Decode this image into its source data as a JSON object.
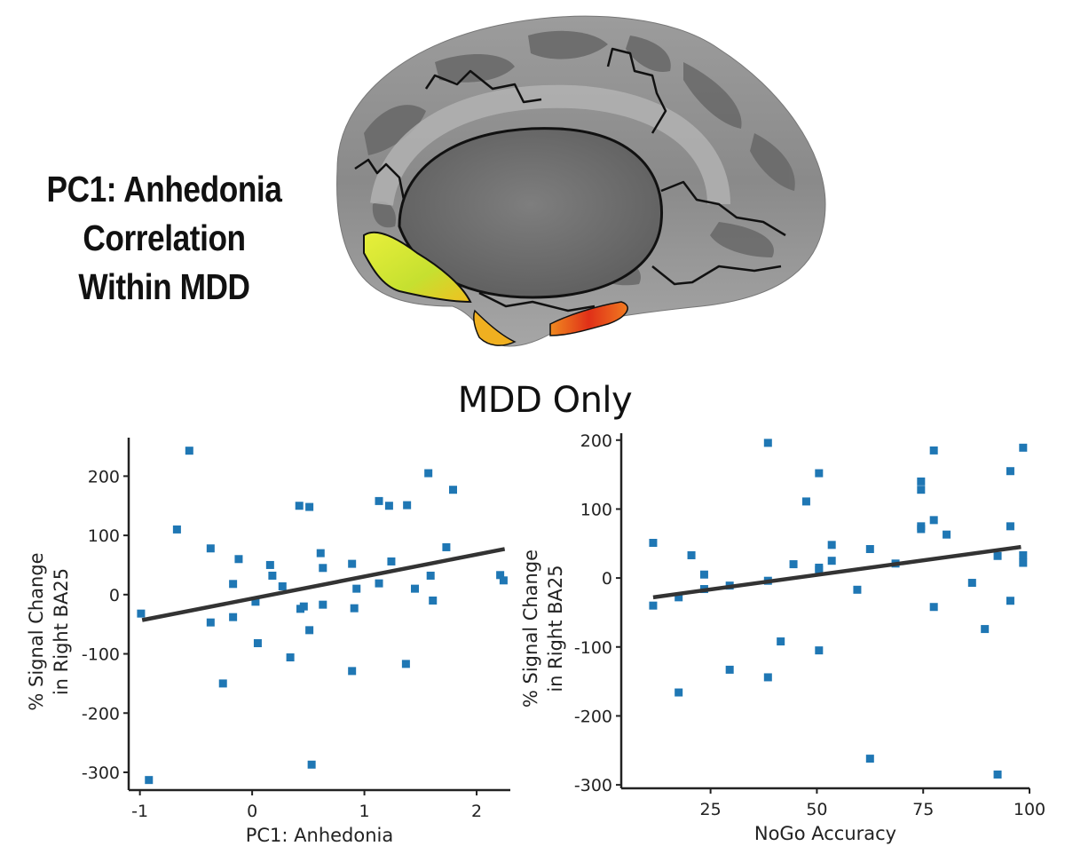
{
  "brain_panel": {
    "title_lines": [
      "PC1: Anhedonia",
      "Correlation",
      "Within MDD"
    ],
    "image_description": "inflated medial brain surface"
  },
  "section_title": "MDD Only",
  "colors": {
    "point": "#1f77b4",
    "fit_line": "#333333",
    "axis": "#222222"
  },
  "chart_data": [
    {
      "type": "scatter",
      "title": "",
      "xlabel": "PC1: Anhedonia",
      "ylabel_lines": [
        "% Signal Change",
        "in Right BA25"
      ],
      "xlim": [
        -1.1,
        2.3
      ],
      "ylim": [
        -330,
        265
      ],
      "xticks": [
        -1,
        0,
        1,
        2
      ],
      "xtick_labels": [
        "-1",
        "0",
        "1",
        "2"
      ],
      "yticks": [
        200,
        100,
        0,
        -100,
        -200,
        -300
      ],
      "ytick_labels": [
        "200",
        "100",
        "0",
        "-100",
        "-200",
        "-300"
      ],
      "points": [
        {
          "x": -0.99,
          "y": -32
        },
        {
          "x": -0.92,
          "y": -313
        },
        {
          "x": -0.67,
          "y": 110
        },
        {
          "x": -0.56,
          "y": 243
        },
        {
          "x": -0.37,
          "y": 78
        },
        {
          "x": -0.37,
          "y": -47
        },
        {
          "x": -0.26,
          "y": -150
        },
        {
          "x": -0.17,
          "y": 18
        },
        {
          "x": -0.17,
          "y": -38
        },
        {
          "x": -0.12,
          "y": 60
        },
        {
          "x": 0.03,
          "y": -12
        },
        {
          "x": 0.05,
          "y": -82
        },
        {
          "x": 0.16,
          "y": 50
        },
        {
          "x": 0.18,
          "y": 32
        },
        {
          "x": 0.27,
          "y": 14
        },
        {
          "x": 0.34,
          "y": -106
        },
        {
          "x": 0.42,
          "y": 150
        },
        {
          "x": 0.43,
          "y": -24
        },
        {
          "x": 0.46,
          "y": -20
        },
        {
          "x": 0.51,
          "y": 148
        },
        {
          "x": 0.51,
          "y": -60
        },
        {
          "x": 0.53,
          "y": -287
        },
        {
          "x": 0.61,
          "y": 70
        },
        {
          "x": 0.63,
          "y": 45
        },
        {
          "x": 0.63,
          "y": -17
        },
        {
          "x": 0.89,
          "y": 52
        },
        {
          "x": 0.89,
          "y": -129
        },
        {
          "x": 0.91,
          "y": -23
        },
        {
          "x": 0.93,
          "y": 10
        },
        {
          "x": 1.13,
          "y": 158
        },
        {
          "x": 1.13,
          "y": 19
        },
        {
          "x": 1.22,
          "y": 150
        },
        {
          "x": 1.24,
          "y": 56
        },
        {
          "x": 1.37,
          "y": -117
        },
        {
          "x": 1.38,
          "y": 151
        },
        {
          "x": 1.45,
          "y": 10
        },
        {
          "x": 1.57,
          "y": 205
        },
        {
          "x": 1.59,
          "y": 32
        },
        {
          "x": 1.61,
          "y": -10
        },
        {
          "x": 1.73,
          "y": 80
        },
        {
          "x": 1.79,
          "y": 177
        },
        {
          "x": 2.21,
          "y": 33
        },
        {
          "x": 2.24,
          "y": 24
        }
      ],
      "fit_line": {
        "x": [
          -0.98,
          2.25
        ],
        "y": [
          -43,
          77
        ]
      }
    },
    {
      "type": "scatter",
      "title": "",
      "xlabel": "NoGo Accuracy",
      "ylabel_lines": [
        "% Signal Change",
        "in Right BA25"
      ],
      "xlim": [
        4,
        100
      ],
      "ylim": [
        -305,
        210
      ],
      "xticks": [
        25,
        50,
        75,
        100
      ],
      "xtick_labels": [
        "25",
        "50",
        "75",
        "100"
      ],
      "yticks": [
        200,
        100,
        0,
        -100,
        -200,
        -300
      ],
      "ytick_labels": [
        "200",
        "100",
        "0",
        "-100",
        "-200",
        "-300"
      ],
      "points": [
        {
          "x": 11.5,
          "y": 51
        },
        {
          "x": 11.5,
          "y": -40
        },
        {
          "x": 17.5,
          "y": -28
        },
        {
          "x": 17.5,
          "y": -166
        },
        {
          "x": 20.5,
          "y": 33
        },
        {
          "x": 23.5,
          "y": 5
        },
        {
          "x": 23.5,
          "y": -16
        },
        {
          "x": 29.5,
          "y": -11
        },
        {
          "x": 29.5,
          "y": -133
        },
        {
          "x": 38.5,
          "y": 196
        },
        {
          "x": 38.5,
          "y": -4
        },
        {
          "x": 38.5,
          "y": -144
        },
        {
          "x": 41.5,
          "y": -92
        },
        {
          "x": 44.5,
          "y": 20
        },
        {
          "x": 47.5,
          "y": 111
        },
        {
          "x": 50.5,
          "y": 152
        },
        {
          "x": 50.5,
          "y": 15
        },
        {
          "x": 50.5,
          "y": 12
        },
        {
          "x": 50.5,
          "y": -105
        },
        {
          "x": 53.5,
          "y": 48
        },
        {
          "x": 53.5,
          "y": 25
        },
        {
          "x": 59.5,
          "y": -17
        },
        {
          "x": 62.5,
          "y": 42
        },
        {
          "x": 62.5,
          "y": -262
        },
        {
          "x": 68.5,
          "y": 21
        },
        {
          "x": 74.5,
          "y": 140
        },
        {
          "x": 74.5,
          "y": 128
        },
        {
          "x": 74.5,
          "y": 75
        },
        {
          "x": 74.5,
          "y": 71
        },
        {
          "x": 77.5,
          "y": 185
        },
        {
          "x": 77.5,
          "y": 84
        },
        {
          "x": 77.5,
          "y": -42
        },
        {
          "x": 80.5,
          "y": 63
        },
        {
          "x": 86.5,
          "y": -7
        },
        {
          "x": 89.5,
          "y": -74
        },
        {
          "x": 92.5,
          "y": 32
        },
        {
          "x": 92.5,
          "y": -285
        },
        {
          "x": 95.5,
          "y": 155
        },
        {
          "x": 95.5,
          "y": 75
        },
        {
          "x": 95.5,
          "y": -33
        },
        {
          "x": 98.5,
          "y": 189
        },
        {
          "x": 98.5,
          "y": 33
        },
        {
          "x": 98.5,
          "y": 22
        }
      ],
      "fit_line": {
        "x": [
          11.5,
          98
        ],
        "y": [
          -28,
          45
        ]
      }
    }
  ]
}
